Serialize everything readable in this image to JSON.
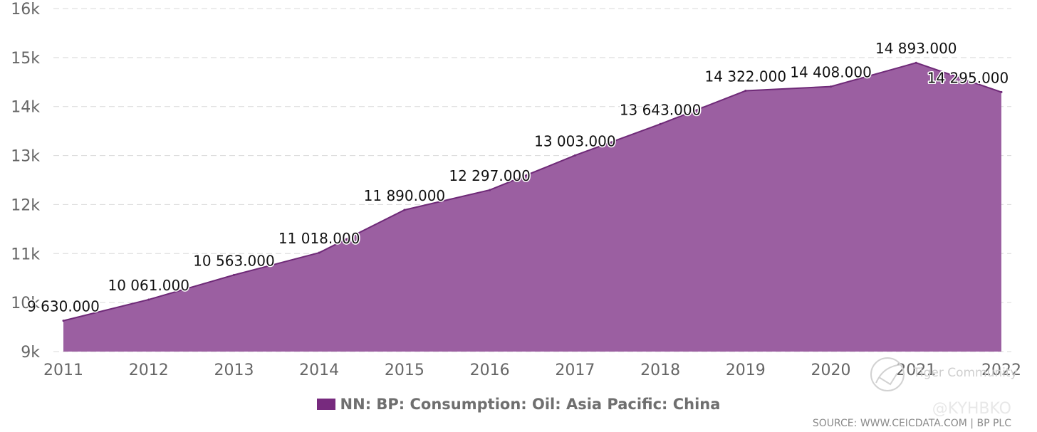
{
  "chart_data": {
    "type": "area",
    "x": [
      "2011",
      "2012",
      "2013",
      "2014",
      "2015",
      "2016",
      "2017",
      "2018",
      "2019",
      "2020",
      "2021",
      "2022"
    ],
    "series": [
      {
        "name": "NN: BP: Consumption: Oil: Asia Pacific: China",
        "values": [
          9630,
          10061,
          10563,
          11018,
          11890,
          12297,
          13003,
          13643,
          14322,
          14408,
          14893,
          14295
        ],
        "labels": [
          "9 630.000",
          "10 061.000",
          "10 563.000",
          "11 018.000",
          "11 890.000",
          "12 297.000",
          "13 003.000",
          "13 643.000",
          "14 322.000",
          "14 408.000",
          "14 893.000",
          "14 295.000"
        ]
      }
    ],
    "ylim": [
      9000,
      16000
    ],
    "yticks": [
      9000,
      10000,
      11000,
      12000,
      13000,
      14000,
      15000,
      16000
    ],
    "ytick_labels": [
      "9k",
      "10k",
      "11k",
      "12k",
      "13k",
      "14k",
      "15k",
      "16k"
    ],
    "grid": true,
    "legend": "bottom-center",
    "color": "#9b5fa1",
    "line_color": "#6f2a78",
    "swatch_color": "#772a7e"
  },
  "source_text": "SOURCE: WWW.CEICDATA.COM | BP PLC",
  "watermark": {
    "text": "Tiger Community",
    "handle": "@KYHBKO"
  }
}
